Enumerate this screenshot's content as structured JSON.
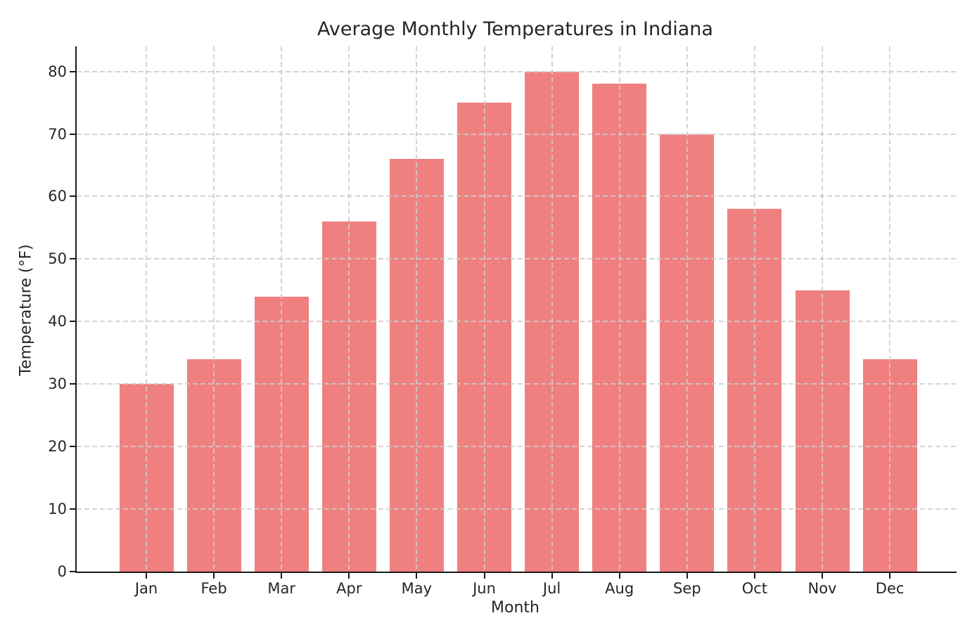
{
  "chart_data": {
    "type": "bar",
    "title": "Average Monthly Temperatures in Indiana",
    "xlabel": "Month",
    "ylabel": "Temperature (°F)",
    "categories": [
      "Jan",
      "Feb",
      "Mar",
      "Apr",
      "May",
      "Jun",
      "Jul",
      "Aug",
      "Sep",
      "Oct",
      "Nov",
      "Dec"
    ],
    "values": [
      30,
      34,
      44,
      56,
      66,
      75,
      80,
      78,
      70,
      58,
      45,
      34
    ],
    "ylim": [
      0,
      84
    ],
    "yticks": [
      0,
      10,
      20,
      30,
      40,
      50,
      60,
      70,
      80
    ],
    "grid": "dashed-both-axes-drawn-over-bars",
    "legend": "none",
    "colors": {
      "bar": "#f08080",
      "grid": "#cccccc",
      "axis": "#1a1a1a",
      "text": "#262626",
      "background": "#ffffff"
    }
  }
}
